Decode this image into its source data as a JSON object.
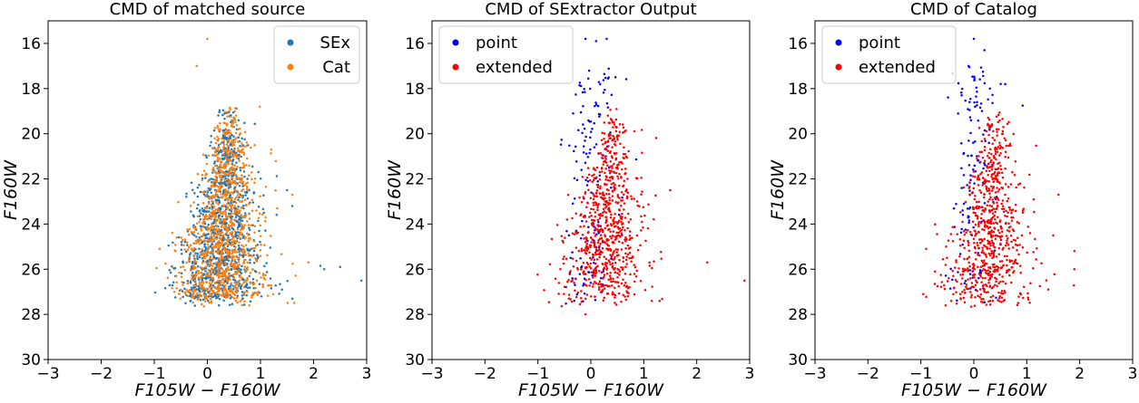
{
  "chart_data": [
    {
      "type": "scatter",
      "title": "CMD of matched source",
      "xlabel_main": "F105W",
      "xlabel_sep": "−",
      "xlabel_sub": "F160W",
      "ylabel": "F160W",
      "xlim": [
        -3,
        3
      ],
      "ylim": [
        30,
        15
      ],
      "y_inverted": true,
      "xticks": [
        "−3",
        "−2",
        "−1",
        "0",
        "1",
        "2",
        "3"
      ],
      "yticks": [
        "16",
        "18",
        "20",
        "22",
        "24",
        "26",
        "28",
        "30"
      ],
      "legend_position": "top-right",
      "series": [
        {
          "name": "SEx",
          "color": "#1f77b4",
          "count": 1100,
          "outliers": [
            [
              2.2,
              26.0
            ],
            [
              2.5,
              25.9
            ],
            [
              2.9,
              26.5
            ],
            [
              1.6,
              27.3
            ],
            [
              1.6,
              23.2
            ],
            [
              1.5,
              22.5
            ]
          ]
        },
        {
          "name": "Cat",
          "color": "#ff7f0e",
          "count": 1100,
          "outliers": [
            [
              -0.9,
              25.1
            ],
            [
              1.9,
              25.7
            ],
            [
              0.0,
              15.8
            ],
            [
              -0.2,
              17.0
            ],
            [
              1.2,
              20.7
            ],
            [
              1.6,
              22.7
            ]
          ]
        }
      ]
    },
    {
      "type": "scatter",
      "title": "CMD of SExtractor Output",
      "xlabel_main": "F105W",
      "xlabel_sep": "−",
      "xlabel_sub": "F160W",
      "ylabel": "F160W",
      "xlim": [
        -3,
        3
      ],
      "ylim": [
        30,
        15
      ],
      "y_inverted": true,
      "xticks": [
        "−3",
        "−2",
        "−1",
        "0",
        "1",
        "2",
        "3"
      ],
      "yticks": [
        "16",
        "18",
        "20",
        "22",
        "24",
        "26",
        "28",
        "30"
      ],
      "legend_position": "top-left",
      "series": [
        {
          "name": "point",
          "color": "#0000ff",
          "count": 150,
          "outliers": [
            [
              -0.1,
              15.8
            ],
            [
              0.1,
              15.9
            ],
            [
              0.3,
              15.8
            ],
            [
              -0.3,
              26.7
            ]
          ]
        },
        {
          "name": "extended",
          "color": "#ff0000",
          "count": 750,
          "outliers": [
            [
              2.2,
              25.7
            ],
            [
              2.9,
              26.5
            ],
            [
              1.5,
              22.5
            ],
            [
              1.3,
              27.4
            ],
            [
              -0.1,
              28.0
            ]
          ]
        }
      ]
    },
    {
      "type": "scatter",
      "title": "CMD of Catalog",
      "xlabel_main": "F105W",
      "xlabel_sep": "−",
      "xlabel_sub": "F160W",
      "ylabel": "F160W",
      "xlim": [
        -3,
        3
      ],
      "ylim": [
        30,
        15
      ],
      "y_inverted": true,
      "xticks": [
        "−3",
        "−2",
        "−1",
        "0",
        "1",
        "2",
        "3"
      ],
      "yticks": [
        "16",
        "18",
        "20",
        "22",
        "24",
        "26",
        "28",
        "30"
      ],
      "legend_position": "top-left",
      "series": [
        {
          "name": "point",
          "color": "#0000ff",
          "count": 140,
          "outliers": [
            [
              0.0,
              15.8
            ],
            [
              -0.1,
              17.0
            ],
            [
              0.2,
              16.3
            ]
          ]
        },
        {
          "name": "extended",
          "color": "#ff0000",
          "count": 720,
          "outliers": [
            [
              -0.9,
              25.1
            ],
            [
              1.9,
              25.2
            ],
            [
              1.9,
              26.0
            ],
            [
              1.6,
              22.7
            ],
            [
              1.5,
              24.5
            ]
          ]
        }
      ]
    }
  ]
}
